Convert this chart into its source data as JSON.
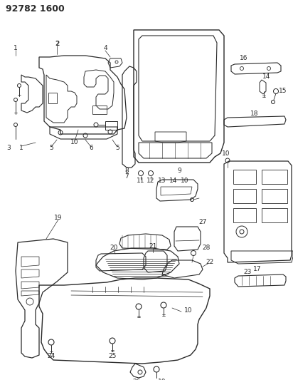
{
  "title": "92782 1600",
  "bg_color": "#ffffff",
  "line_color": "#2a2a2a",
  "label_fontsize": 6.5,
  "bold_label_fontsize": 7.5,
  "fig_width": 4.12,
  "fig_height": 5.33,
  "dpi": 100,
  "lw": 0.75
}
